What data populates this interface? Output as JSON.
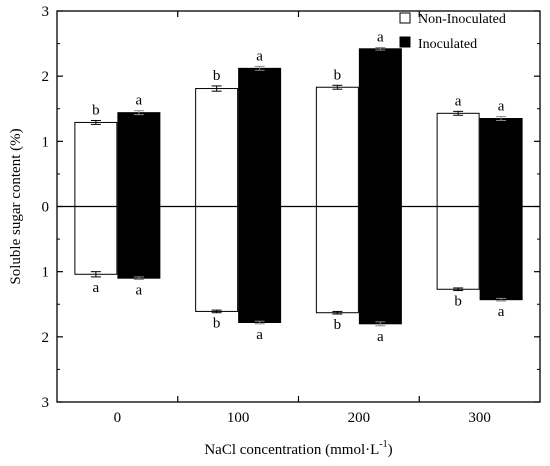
{
  "chart_data": {
    "type": "bar",
    "title": "",
    "xlabel": "NaCl concentration (mmol·L",
    "xlabel_sup": "-1",
    "xlabel_close": ")",
    "ylabel": "Soluble sugar content (%)",
    "categories": [
      "0",
      "100",
      "200",
      "300"
    ],
    "ylim": [
      -3,
      3
    ],
    "y_ticks": [
      {
        "value": 3,
        "label": "3"
      },
      {
        "value": 2,
        "label": "2"
      },
      {
        "value": 1,
        "label": "1"
      },
      {
        "value": 0,
        "label": "0"
      },
      {
        "value": -1,
        "label": "1"
      },
      {
        "value": -2,
        "label": "2"
      },
      {
        "value": -3,
        "label": "3"
      }
    ],
    "grid": false,
    "legend_position": "top-right",
    "series": [
      {
        "name": "Non-Inoculated",
        "color": "#ffffff",
        "upper": {
          "values": [
            1.29,
            1.81,
            1.83,
            1.43
          ],
          "errors": [
            0.03,
            0.04,
            0.03,
            0.03
          ],
          "labels": [
            "b",
            "b",
            "b",
            "a"
          ]
        },
        "lower": {
          "values": [
            -1.04,
            -1.61,
            -1.63,
            -1.27
          ],
          "errors": [
            0.04,
            0.02,
            0.02,
            0.02
          ],
          "labels": [
            "a",
            "b",
            "b",
            "b"
          ]
        }
      },
      {
        "name": "Inoculated",
        "color": "#000000",
        "upper": {
          "values": [
            1.44,
            2.12,
            2.42,
            1.35
          ],
          "errors": [
            0.03,
            0.03,
            0.02,
            0.03
          ],
          "labels": [
            "a",
            "a",
            "a",
            "a"
          ]
        },
        "lower": {
          "values": [
            -1.1,
            -1.78,
            -1.8,
            -1.43
          ],
          "errors": [
            0.02,
            0.02,
            0.03,
            0.02
          ],
          "labels": [
            "a",
            "a",
            "a",
            "a"
          ]
        }
      }
    ]
  }
}
